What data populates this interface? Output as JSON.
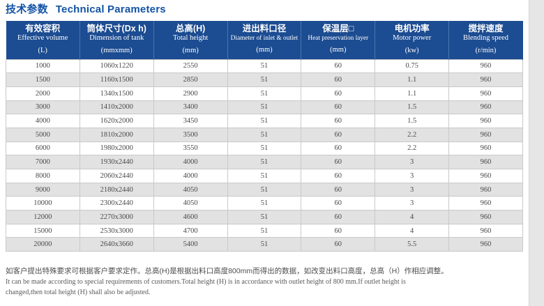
{
  "title": {
    "zh": "技术参数",
    "en": "Technical Parameters"
  },
  "table": {
    "columns": [
      {
        "zh": "有效容积",
        "en": "Effective volume",
        "unit": "(L)"
      },
      {
        "zh": "筒体尺寸(Dx h)",
        "en": "Dimension of tank",
        "unit": "(mmxmm)"
      },
      {
        "zh": "总高(H)",
        "en": "Total height",
        "unit": "(mm)"
      },
      {
        "zh": "进出料口径",
        "en": "Diameter of inlet & outlet",
        "unit": "(mm)"
      },
      {
        "zh": "保温层□",
        "en": "Heat preservation layer",
        "unit": "(mm)"
      },
      {
        "zh": "电机功率",
        "en": "Motor power",
        "unit": "(kw)"
      },
      {
        "zh": "搅拌速度",
        "en": "Blending speed",
        "unit": "(r/min)"
      }
    ],
    "rows": [
      [
        "1000",
        "1060x1220",
        "2550",
        "51",
        "60",
        "0.75",
        "960"
      ],
      [
        "1500",
        "1160x1500",
        "2850",
        "51",
        "60",
        "1.1",
        "960"
      ],
      [
        "2000",
        "1340x1500",
        "2900",
        "51",
        "60",
        "1.1",
        "960"
      ],
      [
        "3000",
        "1410x2000",
        "3400",
        "51",
        "60",
        "1.5",
        "960"
      ],
      [
        "4000",
        "1620x2000",
        "3450",
        "51",
        "60",
        "1.5",
        "960"
      ],
      [
        "5000",
        "1810x2000",
        "3500",
        "51",
        "60",
        "2.2",
        "960"
      ],
      [
        "6000",
        "1980x2000",
        "3550",
        "51",
        "60",
        "2.2",
        "960"
      ],
      [
        "7000",
        "1930x2440",
        "4000",
        "51",
        "60",
        "3",
        "960"
      ],
      [
        "8000",
        "2060x2440",
        "4000",
        "51",
        "60",
        "3",
        "960"
      ],
      [
        "9000",
        "2180x2440",
        "4050",
        "51",
        "60",
        "3",
        "960"
      ],
      [
        "10000",
        "2300x2440",
        "4050",
        "51",
        "60",
        "3",
        "960"
      ],
      [
        "12000",
        "2270x3000",
        "4600",
        "51",
        "60",
        "4",
        "960"
      ],
      [
        "15000",
        "2530x3000",
        "4700",
        "51",
        "60",
        "4",
        "960"
      ],
      [
        "20000",
        "2640x3660",
        "5400",
        "51",
        "60",
        "5.5",
        "960"
      ]
    ]
  },
  "footnote": {
    "zh": "如客户提出特殊要求可根据客户要求定作。总高(H)是根据出料口高度800mm而得出的数据，如改变出料口高度，总高（H）作相应调整。",
    "en": "It can be made according to special requirements of customers.Total height (H) is in accordance with outlet height of 800 mm.If outlet height is changed,then total height (H) shall also be adjusted."
  },
  "colors": {
    "title_blue": "#1253a5",
    "header_bg": "#1c4c91",
    "header_divider": "#4a77b0",
    "stripe": "#e2e2e2",
    "cell_border": "#c9c9c9",
    "cell_text": "#4a4a4a"
  }
}
